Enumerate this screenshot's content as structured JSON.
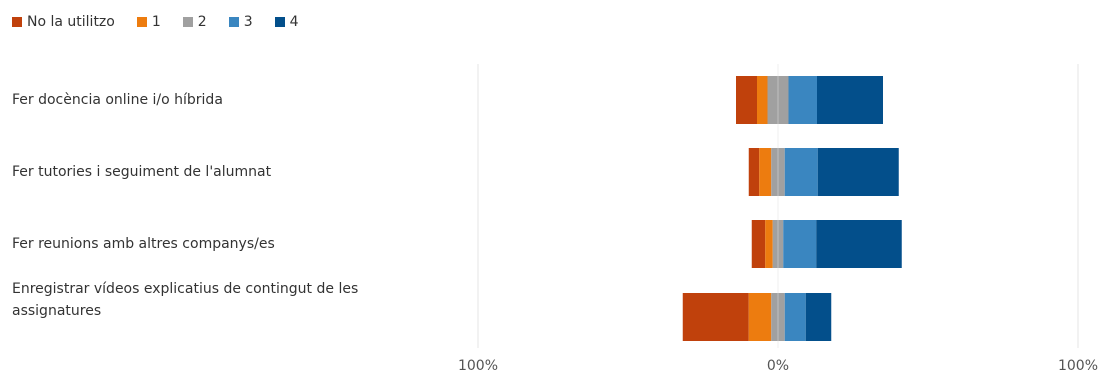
{
  "chart_data": {
    "type": "bar",
    "orientation": "horizontal",
    "stacked": "diverging",
    "categories": [
      "Fer docència online i/o híbrida",
      "Fer tutories i seguiment de l'alumnat",
      "Fer reunions amb altres companys/es",
      "Enregistrar vídeos explicatius de contingut de les assignatures"
    ],
    "series": [
      {
        "name": "No la utilitzo",
        "color": "#C0410C",
        "values": [
          7,
          3.5,
          4.5,
          22
        ]
      },
      {
        "name": "1",
        "color": "#ED7C0F",
        "values": [
          3.5,
          4,
          2.5,
          7.5
        ]
      },
      {
        "name": "2",
        "color": "#A0A0A0",
        "values": [
          7,
          4.5,
          3.5,
          4.5
        ]
      },
      {
        "name": "3",
        "color": "#3A86C0",
        "values": [
          9.5,
          11,
          11,
          7
        ]
      },
      {
        "name": "4",
        "color": "#034F8B",
        "values": [
          22,
          27,
          28.5,
          8.5
        ]
      }
    ],
    "neutral_series": "2",
    "x_ticks": [
      "100%",
      "0%",
      "100%"
    ],
    "xlim": [
      -100,
      100
    ],
    "grid": true,
    "legend": "top-left"
  }
}
